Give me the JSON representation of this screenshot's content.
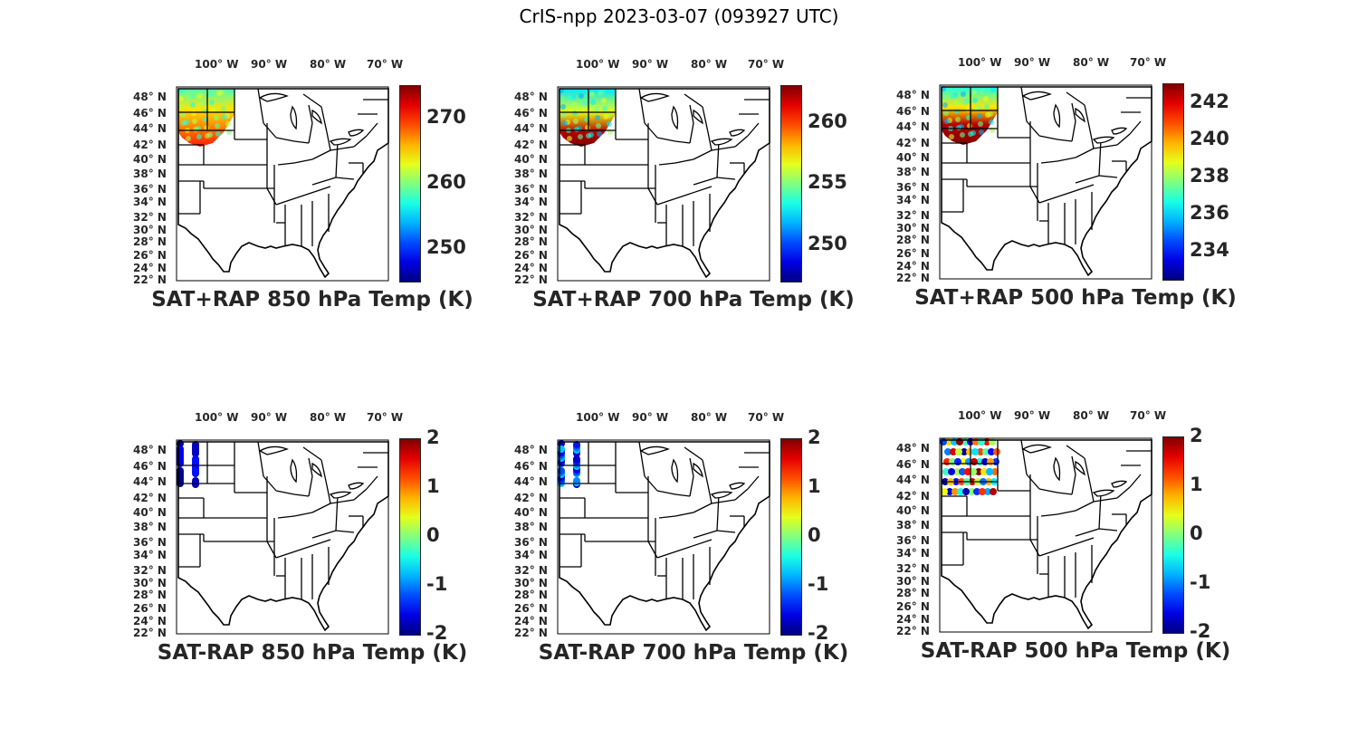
{
  "figure": {
    "title": "CrIS-npp 2023-03-07 (093927 UTC)"
  },
  "map": {
    "lon_labels": [
      "100° W",
      "90° W",
      "80° W",
      "70° W"
    ],
    "lat_labels": [
      "48° N",
      "46° N",
      "44° N",
      "42° N",
      "40° N",
      "38° N",
      "36° N",
      "34° N",
      "32° N",
      "30° N",
      "28° N",
      "26° N",
      "24° N",
      "22° N"
    ]
  },
  "chart_data": [
    {
      "type": "heatmap",
      "title": "SAT+RAP 850 hPa Temp (K)",
      "colormap": "jet",
      "clim": [
        245,
        275
      ],
      "colorbar_ticks": [
        250,
        260,
        270
      ],
      "x_range_lon": [
        -107,
        -66
      ],
      "y_range_lat": [
        22,
        50
      ]
    },
    {
      "type": "heatmap",
      "title": "SAT+RAP 700 hPa Temp (K)",
      "colormap": "jet",
      "clim": [
        247,
        263
      ],
      "colorbar_ticks": [
        250,
        255,
        260
      ],
      "x_range_lon": [
        -107,
        -66
      ],
      "y_range_lat": [
        22,
        50
      ]
    },
    {
      "type": "heatmap",
      "title": "SAT+RAP 500 hPa Temp (K)",
      "colormap": "jet",
      "clim": [
        232.5,
        243
      ],
      "colorbar_ticks": [
        234,
        236,
        238,
        240,
        242
      ],
      "x_range_lon": [
        -107,
        -66
      ],
      "y_range_lat": [
        22,
        50
      ]
    },
    {
      "type": "scatter",
      "title": "SAT-RAP 850 hPa Temp (K)",
      "colormap": "jet",
      "clim": [
        -2,
        2
      ],
      "colorbar_ticks": [
        -2,
        -1,
        0,
        1,
        2
      ],
      "x_range_lon": [
        -107,
        -66
      ],
      "y_range_lat": [
        22,
        50
      ]
    },
    {
      "type": "scatter",
      "title": "SAT-RAP 700 hPa Temp (K)",
      "colormap": "jet",
      "clim": [
        -2,
        2
      ],
      "colorbar_ticks": [
        -2,
        -1,
        0,
        1,
        2
      ],
      "x_range_lon": [
        -107,
        -66
      ],
      "y_range_lat": [
        22,
        50
      ]
    },
    {
      "type": "scatter",
      "title": "SAT-RAP 500 hPa Temp (K)",
      "colormap": "jet",
      "clim": [
        -2,
        2
      ],
      "colorbar_ticks": [
        -2,
        -1,
        0,
        1,
        2
      ],
      "x_range_lon": [
        -107,
        -66
      ],
      "y_range_lat": [
        22,
        50
      ]
    }
  ]
}
